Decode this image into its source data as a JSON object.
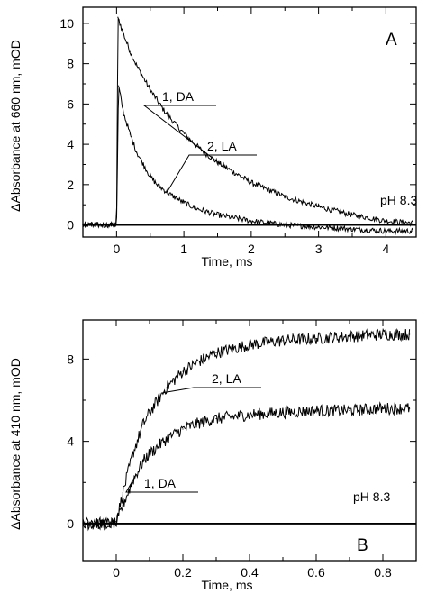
{
  "chart_data": [
    {
      "type": "line",
      "panel_label": "A",
      "annotation": "pH 8.3",
      "xlabel": "Time, ms",
      "ylabel": "ΔAbsorbance at 660 nm, mOD",
      "xlim": [
        -0.5,
        4.45
      ],
      "ylim": [
        -0.6,
        10.8
      ],
      "xticks": [
        0,
        1,
        2,
        3,
        4
      ],
      "yticks": [
        0,
        2,
        4,
        6,
        8,
        10
      ],
      "baseline": 0,
      "series": [
        {
          "name": "1, DA",
          "x": [
            -0.5,
            0.0,
            0.02,
            0.05,
            0.1,
            0.2,
            0.3,
            0.4,
            0.5,
            0.7,
            0.9,
            1.1,
            1.3,
            1.5,
            1.8,
            2.0,
            2.5,
            3.0,
            3.5,
            4.0,
            4.4
          ],
          "values": [
            0.0,
            0.0,
            10.3,
            10.0,
            9.5,
            8.6,
            7.9,
            7.3,
            6.7,
            5.7,
            4.9,
            4.2,
            3.6,
            3.1,
            2.5,
            2.1,
            1.4,
            0.9,
            0.5,
            0.2,
            0.1
          ]
        },
        {
          "name": "2, LA",
          "x": [
            -0.5,
            0.0,
            0.03,
            0.1,
            0.2,
            0.3,
            0.4,
            0.5,
            0.6,
            0.8,
            1.0,
            1.2,
            1.5,
            2.0,
            2.5,
            3.0,
            3.5,
            4.0,
            4.4
          ],
          "values": [
            0.0,
            0.0,
            6.9,
            5.6,
            4.5,
            3.6,
            3.0,
            2.4,
            2.0,
            1.5,
            1.1,
            0.8,
            0.5,
            0.2,
            0.0,
            -0.1,
            -0.2,
            -0.3,
            -0.3
          ]
        }
      ],
      "labels": [
        {
          "series": "1, DA",
          "text": "1, DA"
        },
        {
          "series": "2, LA",
          "text": "2, LA"
        }
      ]
    },
    {
      "type": "line",
      "panel_label": "B",
      "annotation": "pH 8.3",
      "xlabel": "Time, ms",
      "ylabel": "ΔAbsorbance at 410 nm, mOD",
      "xlim": [
        -0.1,
        0.9
      ],
      "ylim": [
        -1.8,
        9.9
      ],
      "xticks": [
        0,
        0.2,
        0.4,
        0.6,
        0.8
      ],
      "yticks": [
        0,
        4,
        8
      ],
      "baseline": 0,
      "series": [
        {
          "name": "2, LA",
          "x": [
            -0.1,
            -0.05,
            0.0,
            0.02,
            0.05,
            0.08,
            0.1,
            0.15,
            0.2,
            0.25,
            0.3,
            0.35,
            0.4,
            0.5,
            0.6,
            0.7,
            0.8,
            0.88
          ],
          "values": [
            0.0,
            0.0,
            0.1,
            1.5,
            3.4,
            4.8,
            5.4,
            6.6,
            7.4,
            7.9,
            8.3,
            8.5,
            8.7,
            8.9,
            9.0,
            9.1,
            9.2,
            9.2
          ]
        },
        {
          "name": "1, DA",
          "x": [
            -0.1,
            -0.05,
            0.0,
            0.02,
            0.05,
            0.08,
            0.1,
            0.15,
            0.2,
            0.25,
            0.3,
            0.35,
            0.4,
            0.5,
            0.6,
            0.7,
            0.8,
            0.88
          ],
          "values": [
            0.0,
            0.0,
            0.0,
            0.9,
            2.1,
            3.0,
            3.4,
            4.1,
            4.6,
            4.9,
            5.1,
            5.2,
            5.3,
            5.4,
            5.5,
            5.5,
            5.6,
            5.6
          ]
        }
      ],
      "labels": [
        {
          "series": "2, LA",
          "text": "2, LA"
        },
        {
          "series": "1, DA",
          "text": "1, DA"
        }
      ]
    }
  ]
}
